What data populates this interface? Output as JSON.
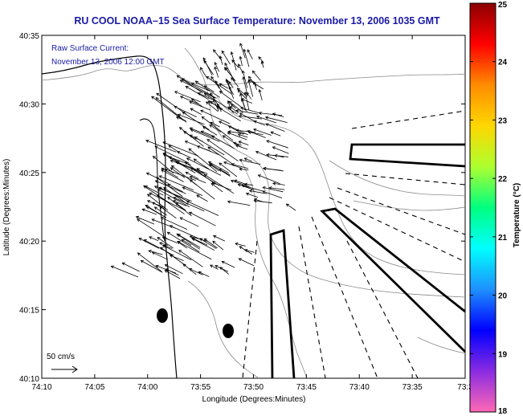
{
  "chart_data": {
    "type": "map",
    "title": "RU COOL  NOAA–15  Sea Surface Temperature:  November 13, 2006 1035 GMT",
    "annotation_lines": [
      "Raw Surface Current:",
      "November 13, 2006 12:00 GMT"
    ],
    "xlabel": "Longitude (Degrees:Minutes)",
    "ylabel": "Latitude (Degrees:Minutes)",
    "x_range_minutes_west": [
      -4450,
      -4410
    ],
    "y_range_minutes_north": [
      2410,
      2435
    ],
    "x_ticks": [
      "74:10",
      "74:05",
      "74:00",
      "73:55",
      "73:50",
      "73:45",
      "73:40",
      "73:35",
      "73:3"
    ],
    "y_ticks": [
      "40:10",
      "40:15",
      "40:20",
      "40:25",
      "40:30",
      "40:35"
    ],
    "scale_label": "50 cm/s",
    "colorbar": {
      "label": "Temperature (°C)",
      "min": 18,
      "max": 25,
      "ticks": [
        "25",
        "24",
        "23",
        "22",
        "21",
        "20",
        "19",
        "18"
      ],
      "colors": [
        "#8b0000",
        "#ff0000",
        "#ff8c00",
        "#ffd700",
        "#adff2f",
        "#00ff7f",
        "#00ffff",
        "#1e90ff",
        "#0000ff",
        "#8a2be2",
        "#ff69b4"
      ]
    },
    "grid": false
  }
}
